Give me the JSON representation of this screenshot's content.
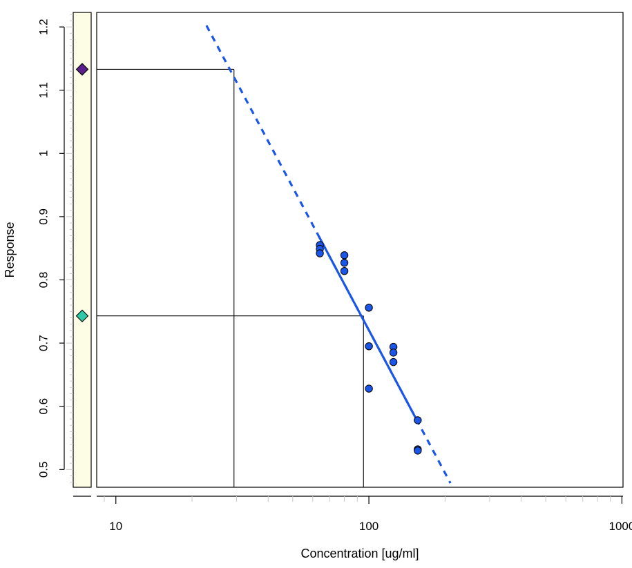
{
  "chart_data": {
    "type": "scatter",
    "title": "",
    "xlabel": "Concentration [ug/ml]",
    "ylabel": "Response",
    "x_scale": "log",
    "xlim": [
      8.4,
      1010
    ],
    "ylim": [
      0.472,
      1.223
    ],
    "x_ticks": [
      10,
      100,
      1000
    ],
    "x_tick_labels": [
      "10",
      "100",
      "1000"
    ],
    "y_ticks": [
      0.5,
      0.6,
      0.7,
      0.8,
      0.9,
      1.0,
      1.1,
      1.2
    ],
    "y_tick_labels": [
      "0.5",
      "0.6",
      "0.7",
      "0.8",
      "0.9",
      "1",
      "1.1",
      "1.2"
    ],
    "grid": false,
    "points": [
      {
        "x": 64,
        "y": 0.855
      },
      {
        "x": 64,
        "y": 0.849
      },
      {
        "x": 64,
        "y": 0.842
      },
      {
        "x": 80,
        "y": 0.839
      },
      {
        "x": 80,
        "y": 0.827
      },
      {
        "x": 80,
        "y": 0.814
      },
      {
        "x": 100,
        "y": 0.756
      },
      {
        "x": 100,
        "y": 0.695
      },
      {
        "x": 100,
        "y": 0.628
      },
      {
        "x": 125,
        "y": 0.694
      },
      {
        "x": 125,
        "y": 0.685
      },
      {
        "x": 125,
        "y": 0.67
      },
      {
        "x": 156,
        "y": 0.578
      },
      {
        "x": 156,
        "y": 0.532
      },
      {
        "x": 156,
        "y": 0.53
      }
    ],
    "point_color": "#1a56e8",
    "fit_line": {
      "color": "#1a56e8",
      "solid_range": [
        63.5,
        156.5
      ],
      "dashed_range": [
        22.8,
        210
      ],
      "intercept": 2.2216,
      "slope": -0.7506
    },
    "reference_levels": [
      {
        "y": 1.133,
        "x": 29.3,
        "marker_color": "#5a1f8c"
      },
      {
        "y": 0.743,
        "x": 95.2,
        "marker_color": "#2ec9a6"
      }
    ],
    "side_strip_color": "#fdfde6"
  }
}
